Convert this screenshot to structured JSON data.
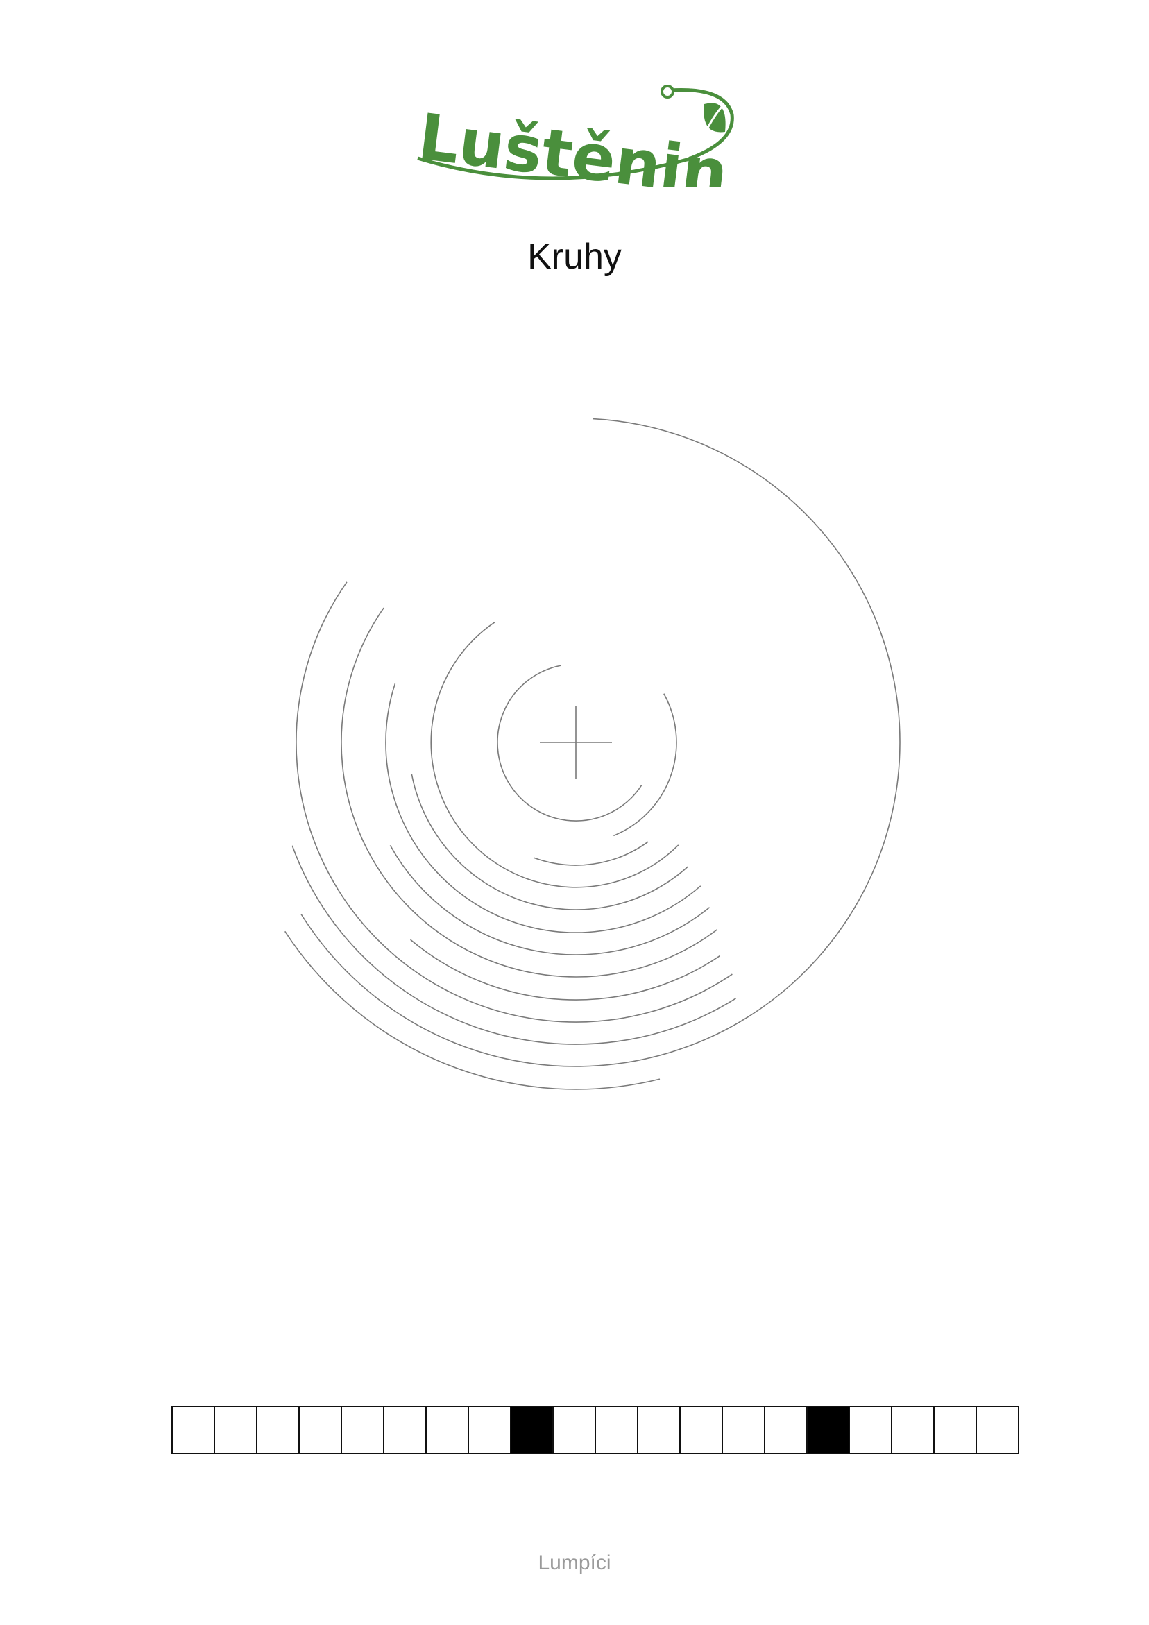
{
  "logo": {
    "text": "Luštěniny",
    "color": "#4a8f3c",
    "icon": "leaf-pea-pod-icon"
  },
  "title": "Kruhy",
  "puzzle": {
    "rings": [
      {
        "start_deg": 284,
        "end_deg": 213
      },
      {
        "start_deg": 87,
        "end_deg": 212
      },
      {
        "start_deg": 302,
        "end_deg": 200
      },
      {
        "start_deg": 304,
        "end_deg": 145
      },
      {
        "start_deg": 304,
        "end_deg": 230
      },
      {
        "start_deg": 307,
        "end_deg": 145
      },
      {
        "start_deg": 309,
        "end_deg": 209
      },
      {
        "start_deg": 311,
        "end_deg": 162
      },
      {
        "start_deg": 312,
        "end_deg": 191
      },
      {
        "start_deg": 315,
        "end_deg": 124
      },
      {
        "start_deg": 306,
        "end_deg": 250
      },
      {
        "start_deg": 29,
        "end_deg": 292
      },
      {
        "start_deg": 327,
        "end_deg": 101
      }
    ]
  },
  "answer_grid": {
    "cells": [
      0,
      0,
      0,
      0,
      0,
      0,
      0,
      0,
      1,
      0,
      0,
      0,
      0,
      0,
      0,
      1,
      0,
      0,
      0,
      0
    ]
  },
  "footer": "Lumpíci"
}
